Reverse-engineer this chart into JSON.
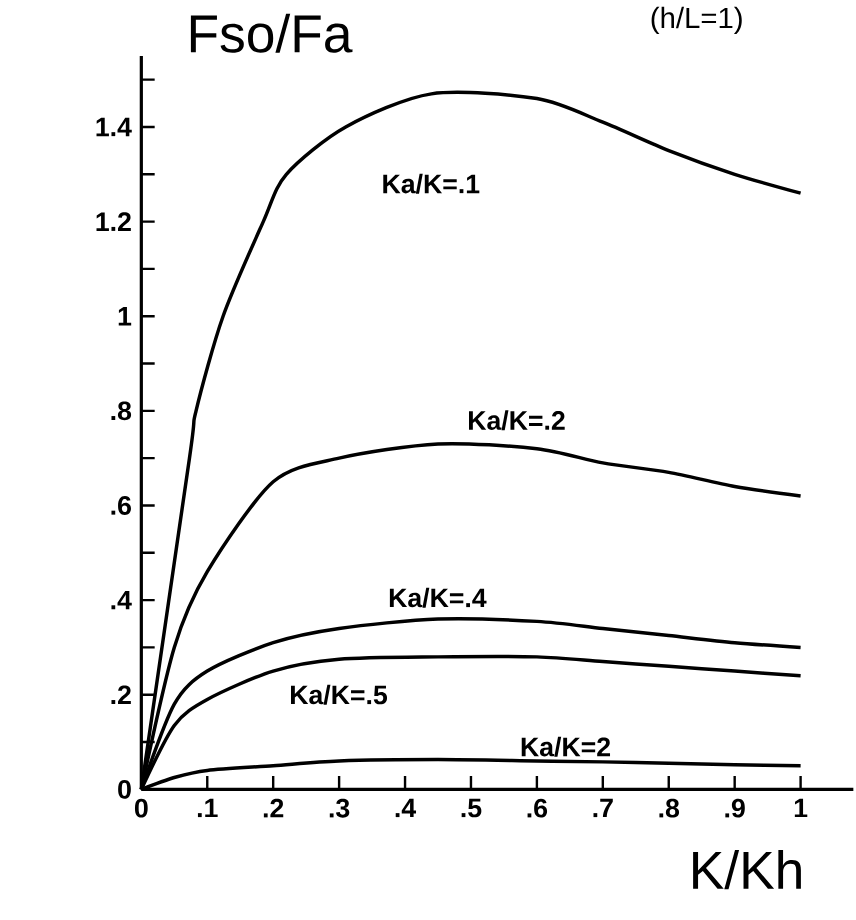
{
  "chart_data": {
    "type": "line",
    "ylabel": "Fso/Fa",
    "title": "(h/L=1)",
    "xlabel": "K/Kh",
    "xlim": [
      0,
      1.08
    ],
    "ylim": [
      0,
      1.55
    ],
    "xticks": [
      {
        "value": 0,
        "label": "0"
      },
      {
        "value": 0.1,
        "label": ".1"
      },
      {
        "value": 0.2,
        "label": ".2"
      },
      {
        "value": 0.3,
        "label": ".3"
      },
      {
        "value": 0.4,
        "label": ".4"
      },
      {
        "value": 0.5,
        "label": ".5"
      },
      {
        "value": 0.6,
        "label": ".6"
      },
      {
        "value": 0.7,
        "label": ".7"
      },
      {
        "value": 0.8,
        "label": ".8"
      },
      {
        "value": 0.9,
        "label": ".9"
      },
      {
        "value": 1,
        "label": "1"
      }
    ],
    "yticks": [
      0,
      {
        "value": 0.1,
        "label": null
      },
      {
        "value": 0.2,
        "label": ".2"
      },
      {
        "value": 0.3,
        "label": null
      },
      {
        "value": 0.4,
        "label": ".4"
      },
      {
        "value": 0.5,
        "label": null
      },
      {
        "value": 0.6,
        "label": ".6"
      },
      {
        "value": 0.7,
        "label": null
      },
      {
        "value": 0.8,
        "label": ".8"
      },
      {
        "value": 0.9,
        "label": null
      },
      1,
      {
        "value": 1.1,
        "label": null
      },
      1.2,
      {
        "value": 1.3,
        "label": null
      },
      1.4,
      {
        "value": 1.5,
        "label": null
      }
    ],
    "grid": false,
    "legend": false,
    "marker": "none",
    "line_style": "solid",
    "series": [
      {
        "name": "Ka/K=.1",
        "color": "#000000",
        "x": [
          0,
          0.073,
          0.083,
          0.124,
          0.185,
          0.22,
          0.31,
          0.44,
          0.6,
          0.7,
          0.8,
          0.9,
          1
        ],
        "values": [
          0,
          0.7,
          0.8,
          1.0,
          1.2,
          1.3,
          1.4,
          1.47,
          1.46,
          1.41,
          1.35,
          1.3,
          1.26
        ]
      },
      {
        "name": "Ka/K=.2",
        "color": "#000000",
        "x": [
          0,
          0.05,
          0.1,
          0.2,
          0.3,
          0.45,
          0.6,
          0.7,
          0.8,
          0.9,
          1
        ],
        "values": [
          0,
          0.3,
          0.46,
          0.65,
          0.7,
          0.73,
          0.72,
          0.69,
          0.67,
          0.64,
          0.62
        ]
      },
      {
        "name": "Ka/K=.4",
        "color": "#000000",
        "x": [
          0,
          0.05,
          0.1,
          0.2,
          0.3,
          0.45,
          0.6,
          0.7,
          0.8,
          0.9,
          1
        ],
        "values": [
          0,
          0.18,
          0.25,
          0.31,
          0.34,
          0.36,
          0.355,
          0.34,
          0.325,
          0.31,
          0.3
        ]
      },
      {
        "name": "Ka/K=.5",
        "color": "#000000",
        "x": [
          0,
          0.05,
          0.1,
          0.2,
          0.3,
          0.45,
          0.6,
          0.7,
          0.8,
          0.9,
          1
        ],
        "values": [
          0,
          0.135,
          0.19,
          0.25,
          0.275,
          0.28,
          0.28,
          0.27,
          0.26,
          0.25,
          0.24
        ]
      },
      {
        "name": "Ka/K=2",
        "color": "#000000",
        "x": [
          0,
          0.05,
          0.1,
          0.2,
          0.3,
          0.45,
          0.6,
          0.7,
          0.8,
          0.9,
          1
        ],
        "values": [
          0,
          0.025,
          0.04,
          0.05,
          0.06,
          0.063,
          0.06,
          0.058,
          0.055,
          0.052,
          0.05
        ]
      }
    ]
  }
}
